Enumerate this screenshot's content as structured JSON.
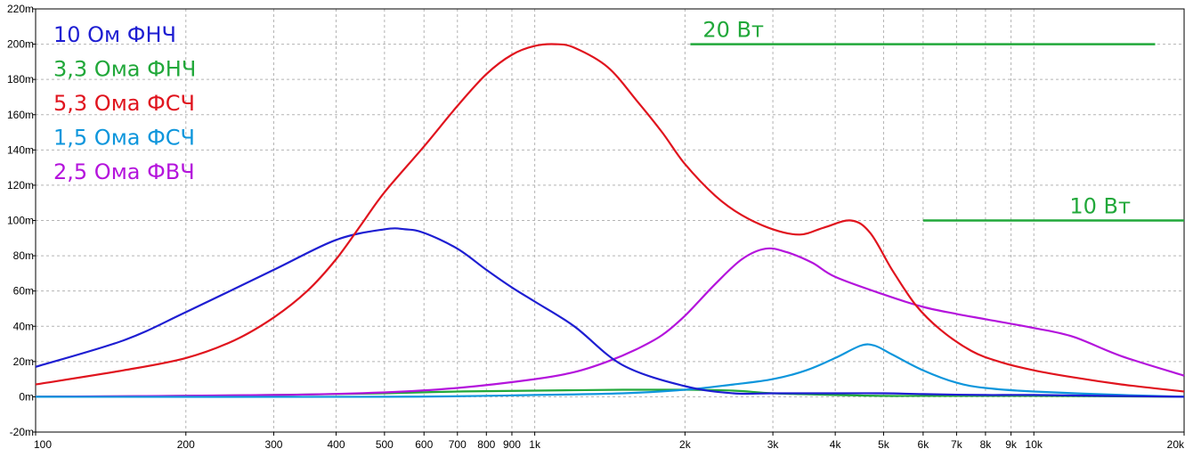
{
  "chart_data": {
    "type": "line",
    "xscale": "log",
    "xlim": [
      100,
      20000
    ],
    "ylim": [
      -20,
      220
    ],
    "grid": true,
    "legend_position": "top-left",
    "x_ticks": [
      100,
      200,
      300,
      400,
      500,
      600,
      700,
      800,
      900,
      1000,
      2000,
      3000,
      4000,
      5000,
      6000,
      7000,
      8000,
      9000,
      10000,
      20000
    ],
    "x_tick_labels": [
      "100",
      "200",
      "300",
      "400",
      "500",
      "600",
      "700",
      "800",
      "900",
      "1k",
      "2k",
      "3k",
      "4k",
      "5k",
      "6k",
      "7k",
      "8k",
      "9k",
      "10k",
      "20k"
    ],
    "y_ticks": [
      -20,
      0,
      20,
      40,
      60,
      80,
      100,
      120,
      140,
      160,
      180,
      200,
      220
    ],
    "y_tick_labels": [
      "-20m",
      "0m",
      "20m",
      "40m",
      "60m",
      "80m",
      "100m",
      "120m",
      "140m",
      "160m",
      "180m",
      "200m",
      "220m"
    ],
    "series": [
      {
        "name": "10 Ом ФНЧ",
        "color": "#1e1ed2",
        "points": [
          [
            100,
            17
          ],
          [
            150,
            32
          ],
          [
            200,
            48
          ],
          [
            300,
            72
          ],
          [
            400,
            89
          ],
          [
            500,
            95
          ],
          [
            550,
            95
          ],
          [
            600,
            93
          ],
          [
            700,
            84
          ],
          [
            800,
            72
          ],
          [
            900,
            62
          ],
          [
            1000,
            54
          ],
          [
            1200,
            40
          ],
          [
            1500,
            18
          ],
          [
            2000,
            6
          ],
          [
            2500,
            2
          ],
          [
            3000,
            2
          ],
          [
            4000,
            2
          ],
          [
            5000,
            2
          ],
          [
            6000,
            1.5
          ],
          [
            8000,
            1
          ],
          [
            10000,
            1
          ],
          [
            20000,
            0
          ]
        ]
      },
      {
        "name": "3,3 Ома ФНЧ",
        "color": "#21a83a",
        "points": [
          [
            100,
            0
          ],
          [
            200,
            0.5
          ],
          [
            300,
            1
          ],
          [
            500,
            2
          ],
          [
            700,
            3
          ],
          [
            1000,
            3.5
          ],
          [
            1500,
            4
          ],
          [
            2000,
            4
          ],
          [
            2500,
            3.5
          ],
          [
            3000,
            2
          ],
          [
            4000,
            1
          ],
          [
            5000,
            0.5
          ],
          [
            6000,
            0.5
          ],
          [
            10000,
            0.5
          ],
          [
            20000,
            0
          ]
        ]
      },
      {
        "name": "5,3 Ома ФСЧ",
        "color": "#e0141e",
        "points": [
          [
            100,
            7
          ],
          [
            150,
            15
          ],
          [
            200,
            22
          ],
          [
            250,
            32
          ],
          [
            300,
            45
          ],
          [
            350,
            60
          ],
          [
            400,
            78
          ],
          [
            450,
            98
          ],
          [
            500,
            116
          ],
          [
            600,
            142
          ],
          [
            700,
            165
          ],
          [
            800,
            183
          ],
          [
            900,
            194
          ],
          [
            1000,
            199
          ],
          [
            1100,
            200
          ],
          [
            1200,
            198
          ],
          [
            1400,
            187
          ],
          [
            1600,
            168
          ],
          [
            1800,
            150
          ],
          [
            2000,
            132
          ],
          [
            2300,
            114
          ],
          [
            2600,
            103
          ],
          [
            3000,
            95
          ],
          [
            3400,
            92
          ],
          [
            3800,
            96
          ],
          [
            4300,
            100
          ],
          [
            4700,
            93
          ],
          [
            5200,
            72
          ],
          [
            5800,
            52
          ],
          [
            6500,
            38
          ],
          [
            7500,
            26
          ],
          [
            8500,
            20
          ],
          [
            10000,
            15
          ],
          [
            12000,
            11
          ],
          [
            15000,
            7
          ],
          [
            20000,
            3
          ]
        ]
      },
      {
        "name": "1,5 Ома ФСЧ",
        "color": "#0e96dc",
        "points": [
          [
            100,
            0
          ],
          [
            500,
            0
          ],
          [
            1000,
            1
          ],
          [
            1500,
            2
          ],
          [
            2000,
            4
          ],
          [
            2500,
            7
          ],
          [
            3000,
            10
          ],
          [
            3500,
            15
          ],
          [
            4000,
            22
          ],
          [
            4500,
            29
          ],
          [
            4800,
            29
          ],
          [
            5200,
            24
          ],
          [
            6000,
            15
          ],
          [
            7000,
            8
          ],
          [
            8000,
            5
          ],
          [
            10000,
            3
          ],
          [
            15000,
            1
          ],
          [
            20000,
            0
          ]
        ]
      },
      {
        "name": "2,5 Ома ФВЧ",
        "color": "#b414dc",
        "points": [
          [
            100,
            0
          ],
          [
            300,
            1
          ],
          [
            500,
            2.5
          ],
          [
            700,
            5
          ],
          [
            1000,
            10
          ],
          [
            1200,
            14
          ],
          [
            1400,
            20
          ],
          [
            1600,
            27
          ],
          [
            1800,
            35
          ],
          [
            2000,
            46
          ],
          [
            2300,
            64
          ],
          [
            2600,
            78
          ],
          [
            2900,
            84
          ],
          [
            3200,
            82
          ],
          [
            3600,
            76
          ],
          [
            4000,
            68
          ],
          [
            5000,
            58
          ],
          [
            6000,
            51
          ],
          [
            7000,
            47
          ],
          [
            8000,
            44
          ],
          [
            10000,
            39
          ],
          [
            12000,
            34
          ],
          [
            15000,
            23
          ],
          [
            20000,
            12
          ]
        ]
      }
    ],
    "annotations": [
      {
        "text": "20 Вт",
        "value": 200,
        "x_from": 2050,
        "x_to": 17500
      },
      {
        "text": "10 Вт",
        "value": 100,
        "x_from": 6000,
        "x_to": 20000
      }
    ]
  }
}
